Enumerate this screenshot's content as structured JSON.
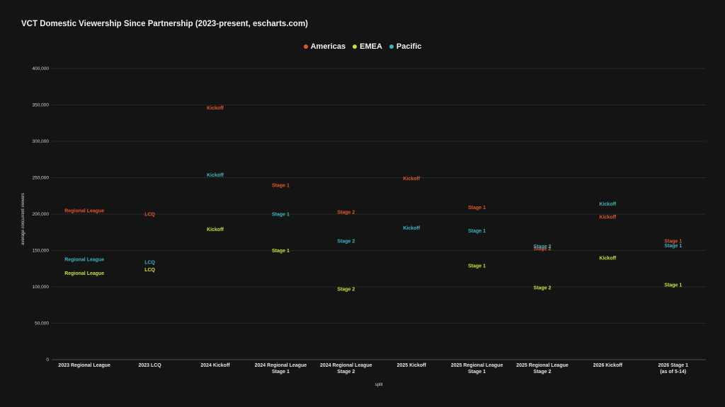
{
  "chart_data": {
    "type": "scatter",
    "title": "VCT Domestic Viewership Since Partnership (2023-present, escharts.com)",
    "xlabel": "split",
    "ylabel": "average concurrent viewers",
    "ylim": [
      0,
      400000
    ],
    "yticks": [
      "0",
      "50,000",
      "100,000",
      "150,000",
      "200,000",
      "250,000",
      "300,000",
      "350,000",
      "400,000"
    ],
    "ytick_values": [
      0,
      50000,
      100000,
      150000,
      200000,
      250000,
      300000,
      350000,
      400000
    ],
    "grid": true,
    "legend_position": "top-center",
    "categories": [
      [
        "2023 Regional League"
      ],
      [
        "2023 LCQ"
      ],
      [
        "2024 Kickoff"
      ],
      [
        "2024 Regional League",
        "Stage 1"
      ],
      [
        "2024 Regional League",
        "Stage 2"
      ],
      [
        "2025 Kickoff"
      ],
      [
        "2025 Regional League",
        "Stage 1"
      ],
      [
        "2025 Regional League",
        "Stage 2"
      ],
      [
        "2026 Kickoff"
      ],
      [
        "2026 Stage 1",
        "(as of 5-14)"
      ]
    ],
    "point_labels": [
      "Regional League",
      "LCQ",
      "Kickoff",
      "Stage 1",
      "Stage 2",
      "Kickoff",
      "Stage 1",
      "Stage 2",
      "Kickoff",
      "Stage 1"
    ],
    "series": [
      {
        "name": "Americas",
        "color": "#e0582a",
        "values": [
          205000,
          200000,
          346000,
          240000,
          203000,
          249000,
          209000,
          153000,
          196000,
          163000
        ]
      },
      {
        "name": "EMEA",
        "color": "#c9e03a",
        "values": [
          119000,
          124000,
          179000,
          150000,
          97000,
          null,
          129000,
          99000,
          140000,
          103000
        ]
      },
      {
        "name": "Pacific",
        "color": "#3fb3c0",
        "values": [
          138000,
          134000,
          254000,
          200000,
          163000,
          181000,
          177000,
          156000,
          214000,
          157000
        ]
      }
    ]
  }
}
